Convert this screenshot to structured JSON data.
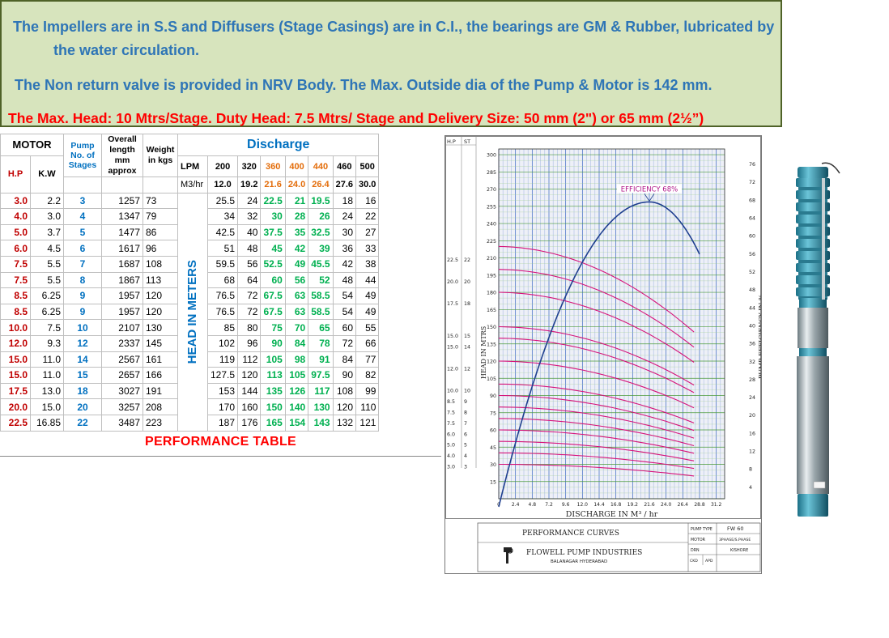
{
  "banner": {
    "line1": "The Impellers are in S.S and Diffusers (Stage Casings) are in C.I., the bearings are GM & Rubber, lubricated by",
    "line1b": "the water circulation.",
    "line2": "The Non return valve is provided in NRV Body.  The Max.  Outside dia of the Pump & Motor is 142 mm.",
    "line3": "The Max. Head: 10 Mtrs/Stage. Duty Head: 7.5 Mtrs/ Stage and Delivery Size:  50 mm (2\") or 65 mm (2½”)"
  },
  "table": {
    "motor": "MOTOR",
    "hp": "H.P",
    "kw": "K.W",
    "pump_stages": "Pump No. of Stages",
    "overall": "Overall length mm approx",
    "weight": "Weight in kgs",
    "discharge": "Discharge",
    "lpm": "LPM",
    "m3hr": "M3/hr",
    "head_label": "HEAD IN METERS",
    "lpm_values": [
      "200",
      "320",
      "360",
      "400",
      "440",
      "460",
      "500"
    ],
    "m3_values": [
      "12.0",
      "19.2",
      "21.6",
      "24.0",
      "26.4",
      "27.6",
      "30.0"
    ],
    "rows": [
      [
        "3.0",
        "2.2",
        "3",
        "1257",
        "73",
        "25.5",
        "24",
        "22.5",
        "21",
        "19.5",
        "18",
        "16"
      ],
      [
        "4.0",
        "3.0",
        "4",
        "1347",
        "79",
        "34",
        "32",
        "30",
        "28",
        "26",
        "24",
        "22"
      ],
      [
        "5.0",
        "3.7",
        "5",
        "1477",
        "86",
        "42.5",
        "40",
        "37.5",
        "35",
        "32.5",
        "30",
        "27"
      ],
      [
        "6.0",
        "4.5",
        "6",
        "1617",
        "96",
        "51",
        "48",
        "45",
        "42",
        "39",
        "36",
        "33"
      ],
      [
        "7.5",
        "5.5",
        "7",
        "1687",
        "108",
        "59.5",
        "56",
        "52.5",
        "49",
        "45.5",
        "42",
        "38"
      ],
      [
        "7.5",
        "5.5",
        "8",
        "1867",
        "113",
        "68",
        "64",
        "60",
        "56",
        "52",
        "48",
        "44"
      ],
      [
        "8.5",
        "6.25",
        "9",
        "1957",
        "120",
        "76.5",
        "72",
        "67.5",
        "63",
        "58.5",
        "54",
        "49"
      ],
      [
        "8.5",
        "6.25",
        "9",
        "1957",
        "120",
        "76.5",
        "72",
        "67.5",
        "63",
        "58.5",
        "54",
        "49"
      ],
      [
        "10.0",
        "7.5",
        "10",
        "2107",
        "130",
        "85",
        "80",
        "75",
        "70",
        "65",
        "60",
        "55"
      ],
      [
        "12.0",
        "9.3",
        "12",
        "2337",
        "145",
        "102",
        "96",
        "90",
        "84",
        "78",
        "72",
        "66"
      ],
      [
        "15.0",
        "11.0",
        "14",
        "2567",
        "161",
        "119",
        "112",
        "105",
        "98",
        "91",
        "84",
        "77"
      ],
      [
        "15.0",
        "11.0",
        "15",
        "2657",
        "166",
        "127.5",
        "120",
        "113",
        "105",
        "97.5",
        "90",
        "82"
      ],
      [
        "17.5",
        "13.0",
        "18",
        "3027",
        "191",
        "153",
        "144",
        "135",
        "126",
        "117",
        "108",
        "99"
      ],
      [
        "20.0",
        "15.0",
        "20",
        "3257",
        "208",
        "170",
        "160",
        "150",
        "140",
        "130",
        "120",
        "110"
      ],
      [
        "22.5",
        "16.85",
        "22",
        "3487",
        "223",
        "187",
        "176",
        "165",
        "154",
        "143",
        "132",
        "121"
      ]
    ],
    "caption": "PERFORMANCE TABLE"
  },
  "chart": {
    "hp_header": "H.P",
    "st_header": "ST",
    "hp_st": [
      [
        "22.5",
        "22"
      ],
      [
        "20.0",
        "20"
      ],
      [
        "17.5",
        "18"
      ],
      [
        "15.0",
        "15"
      ],
      [
        "15.0",
        "14"
      ],
      [
        "12.0",
        "12"
      ],
      [
        "10.0",
        "10"
      ],
      [
        "8.5",
        "9"
      ],
      [
        "7.5",
        "8"
      ],
      [
        "7.5",
        "7"
      ],
      [
        "6.0",
        "6"
      ],
      [
        "5.0",
        "5"
      ],
      [
        "4.0",
        "4"
      ],
      [
        "3.0",
        "3"
      ]
    ],
    "head_ticks": [
      "300",
      "285",
      "270",
      "255",
      "240",
      "225",
      "210",
      "195",
      "180",
      "165",
      "150",
      "135",
      "120",
      "105",
      "90",
      "75",
      "60",
      "45",
      "30",
      "15"
    ],
    "eff_ticks": [
      "76",
      "72",
      "68",
      "64",
      "60",
      "56",
      "52",
      "48",
      "44",
      "40",
      "36",
      "32",
      "28",
      "24",
      "20",
      "16",
      "12",
      "8",
      "4"
    ],
    "x_ticks": [
      "0",
      "2.4",
      "4.8",
      "7.2",
      "9.6",
      "12.0",
      "14.4",
      "16.8",
      "19.2",
      "21.6",
      "24.0",
      "26.4",
      "28.8",
      "31.2"
    ],
    "x_label": "DISCHARGE IN M³ / hr",
    "y_label": "HEAD IN MTRS",
    "y2_label": "PUMP EFFICIENCY IN %",
    "efficiency_label": "EFFICIENCY 68%",
    "title_block": {
      "title": "PERFORMANCE CURVES",
      "company": "FLOWELL PUMP INDUSTRIES",
      "address": "BALANAGAR HYDERABAD",
      "pump_type_label": "PUMP TYPE",
      "pump_type": "FW 60",
      "motor_label": "MOTOR",
      "motor": "3PHASE/S.PHASE",
      "drn_label": "DRN",
      "drn": "KISHORE",
      "ckd_label": "CKD",
      "apd_label": "APD"
    }
  },
  "colors": {
    "banner_bg": "#d7e4bd",
    "red": "#c00000",
    "blue": "#0070c0",
    "green": "#00b050",
    "orange": "#e36c09",
    "curve": "#d6137a",
    "efficiency": "#1f3f8f"
  }
}
